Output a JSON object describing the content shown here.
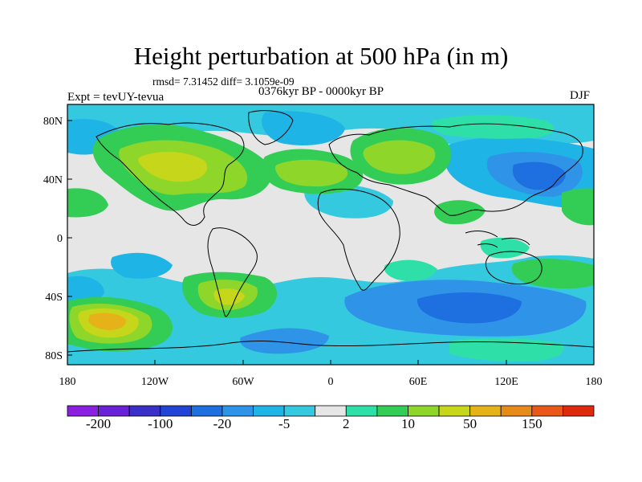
{
  "title": "Height perturbation at 500 hPa (in m)",
  "stats_line": "rmsd= 7.31452 diff= 3.1059e-09",
  "experiment_label": "Expt = tevUY-tevua",
  "period_label": "0376kyr BP - 0000kyr BP",
  "season_label": "DJF",
  "lat_labels": [
    "80N",
    "40N",
    "0",
    "40S",
    "80S"
  ],
  "lon_labels": [
    "180",
    "120W",
    "60W",
    "0",
    "60E",
    "120E",
    "180"
  ],
  "colorbar": {
    "colors": [
      "#8a1fe0",
      "#6a22d6",
      "#3a2fc7",
      "#2244d4",
      "#1e6fe0",
      "#2f94e8",
      "#1eb4e6",
      "#35c9e0",
      "#e6e6e6",
      "#2ee0a8",
      "#33cc55",
      "#8ed62a",
      "#c6d61a",
      "#e6b21a",
      "#e68a1a",
      "#e8581a",
      "#e02a10"
    ],
    "labels": [
      "-200",
      "-100",
      "-20",
      "-5",
      "2",
      "10",
      "50",
      "150"
    ]
  },
  "palette": {
    "background": "#e6e6e6",
    "neg_light": "#35c9e0",
    "neg_mid": "#1eb4e6",
    "neg_dark": "#2f94e8",
    "neg_deep": "#1e6fe0",
    "pos_light": "#2ee0a8",
    "pos_green": "#33cc55",
    "pos_lime": "#8ed62a",
    "pos_yellow": "#c6d61a",
    "pos_gold": "#e6b21a",
    "pos_orange": "#e68a1a",
    "pos_red": "#e8581a"
  }
}
